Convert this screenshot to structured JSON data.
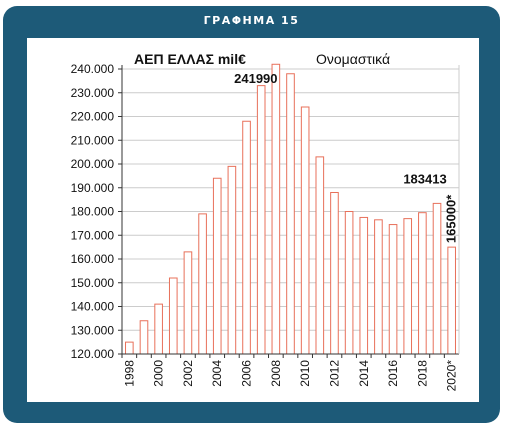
{
  "frame_title": "ΓΡΑΦΗΜΑ 15",
  "colors": {
    "frame": "#1d5a78",
    "bar_stroke": "#e8705a",
    "grid": "#cccccc"
  },
  "chart_data": {
    "type": "bar",
    "title": "ΑΕΠ ΕΛΛΑΣ mil€",
    "subtitle": "Ονομαστικά",
    "xlabel": "",
    "ylabel": "",
    "ylim": [
      120000,
      240000
    ],
    "y_ticks": [
      "120.000",
      "130.000",
      "140.000",
      "150.000",
      "160.000",
      "170.000",
      "180.000",
      "190.000",
      "200.000",
      "210.000",
      "220.000",
      "230.000",
      "240.000"
    ],
    "grid": "horizontal",
    "categories": [
      "1998",
      "1999",
      "2000",
      "2001",
      "2002",
      "2003",
      "2004",
      "2005",
      "2006",
      "2007",
      "2008",
      "2009",
      "2010",
      "2011",
      "2012",
      "2013",
      "2014",
      "2015",
      "2016",
      "2017",
      "2018",
      "2019",
      "2020*"
    ],
    "x_tick_labels": [
      "1998",
      "2000",
      "2002",
      "2004",
      "2006",
      "2008",
      "2010",
      "2012",
      "2014",
      "2016",
      "2018",
      "2020*"
    ],
    "values": [
      125000,
      134000,
      141000,
      152000,
      163000,
      179000,
      194000,
      199000,
      218000,
      233000,
      241990,
      238000,
      224000,
      203000,
      188000,
      180000,
      177500,
      176500,
      174500,
      177000,
      179500,
      183413,
      165000
    ],
    "data_labels": [
      {
        "category": "2008",
        "text": "241990"
      },
      {
        "category": "2019",
        "text": "183413"
      },
      {
        "category": "2020*",
        "text": "165000*"
      }
    ]
  }
}
